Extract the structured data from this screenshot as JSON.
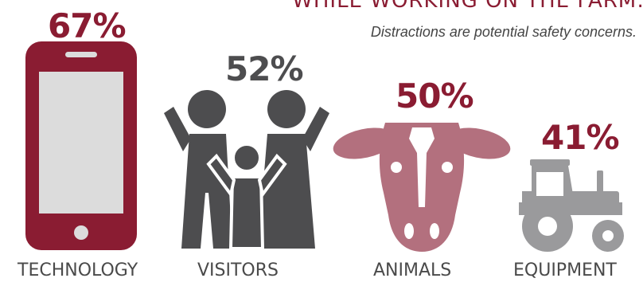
{
  "header": {
    "title": "WHILE WORKING ON THE FARM:",
    "subtitle": "Distractions are potential safety concerns."
  },
  "colors": {
    "maroon": "#8a1c32",
    "rose": "#b3707e",
    "dark_gray": "#4d4d4f",
    "light_gray": "#9a9a9c",
    "screen": "#dcdcdc"
  },
  "icons": [
    "smartphone-icon",
    "family-icon",
    "cow-head-icon",
    "tractor-icon"
  ],
  "chart_data": {
    "type": "bar",
    "categories": [
      "TECHNOLOGY",
      "VISITORS",
      "ANIMALS",
      "EQUIPMENT"
    ],
    "values": [
      67,
      52,
      50,
      41
    ],
    "value_labels": [
      "67%",
      "52%",
      "50%",
      "41%"
    ],
    "title": "",
    "xlabel": "",
    "ylabel": ""
  }
}
